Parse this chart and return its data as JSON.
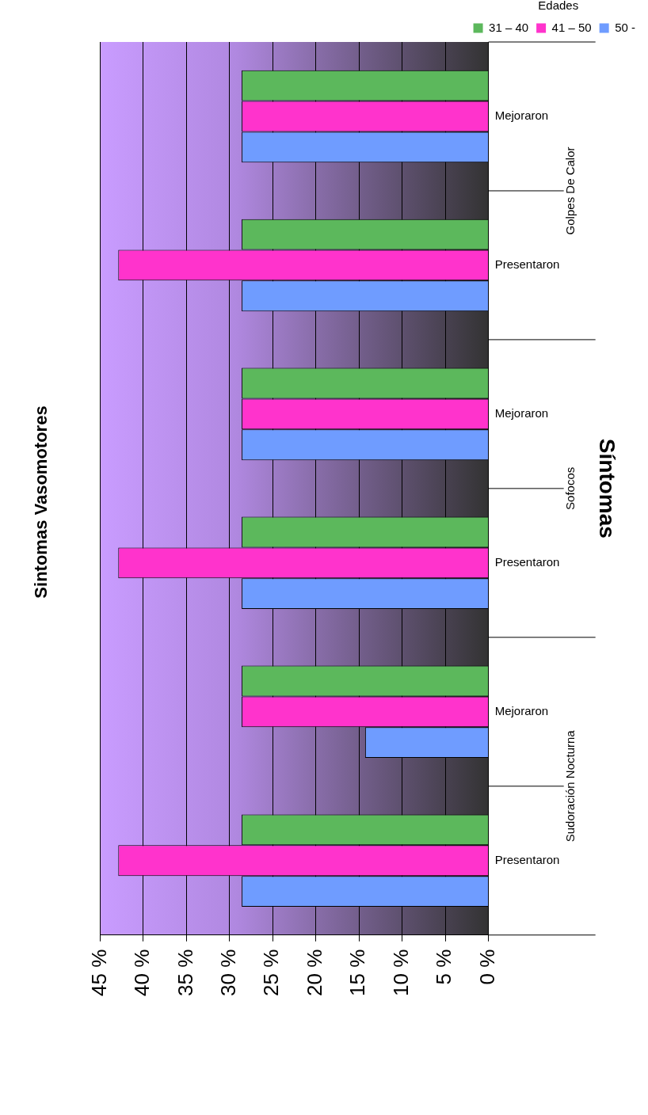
{
  "chart_data": {
    "type": "bar",
    "orientation": "horizontal",
    "title": "Sintomas Vasomotores",
    "ylabel": "Síntomas",
    "legend_title": "Edades",
    "categories": [
      "Mejoraron",
      "Presentaron",
      "Mejoraron",
      "Presentaron",
      "Mejoraron",
      "Presentaron"
    ],
    "annotations": [
      "Golpes De Calor",
      "Sofocos",
      "Sudoración Nocturna"
    ],
    "series": [
      {
        "name": "31 – 40",
        "color": "#5cb85c",
        "values": [
          28.6,
          28.6,
          28.6,
          28.6,
          28.6,
          28.6
        ]
      },
      {
        "name": "41 – 50",
        "color": "#ff33cc",
        "values": [
          28.6,
          42.9,
          28.6,
          42.9,
          28.6,
          42.9
        ]
      },
      {
        "name": "50 -",
        "color": "#6f9cff",
        "values": [
          28.6,
          28.6,
          28.6,
          28.6,
          14.3,
          28.6
        ]
      }
    ],
    "xlim": [
      45,
      0
    ],
    "xticks": [
      {
        "value": 45,
        "label": "45 %"
      },
      {
        "value": 40,
        "label": "40 %"
      },
      {
        "value": 35,
        "label": "35 %"
      },
      {
        "value": 30,
        "label": "30 %"
      },
      {
        "value": 25,
        "label": "25 %"
      },
      {
        "value": 20,
        "label": "20 %"
      },
      {
        "value": 15,
        "label": "15 %"
      },
      {
        "value": 10,
        "label": "10 %"
      },
      {
        "value": 5,
        "label": "5 %"
      },
      {
        "value": 0,
        "label": "0 %"
      }
    ],
    "grid": "x",
    "legend": "top right"
  }
}
